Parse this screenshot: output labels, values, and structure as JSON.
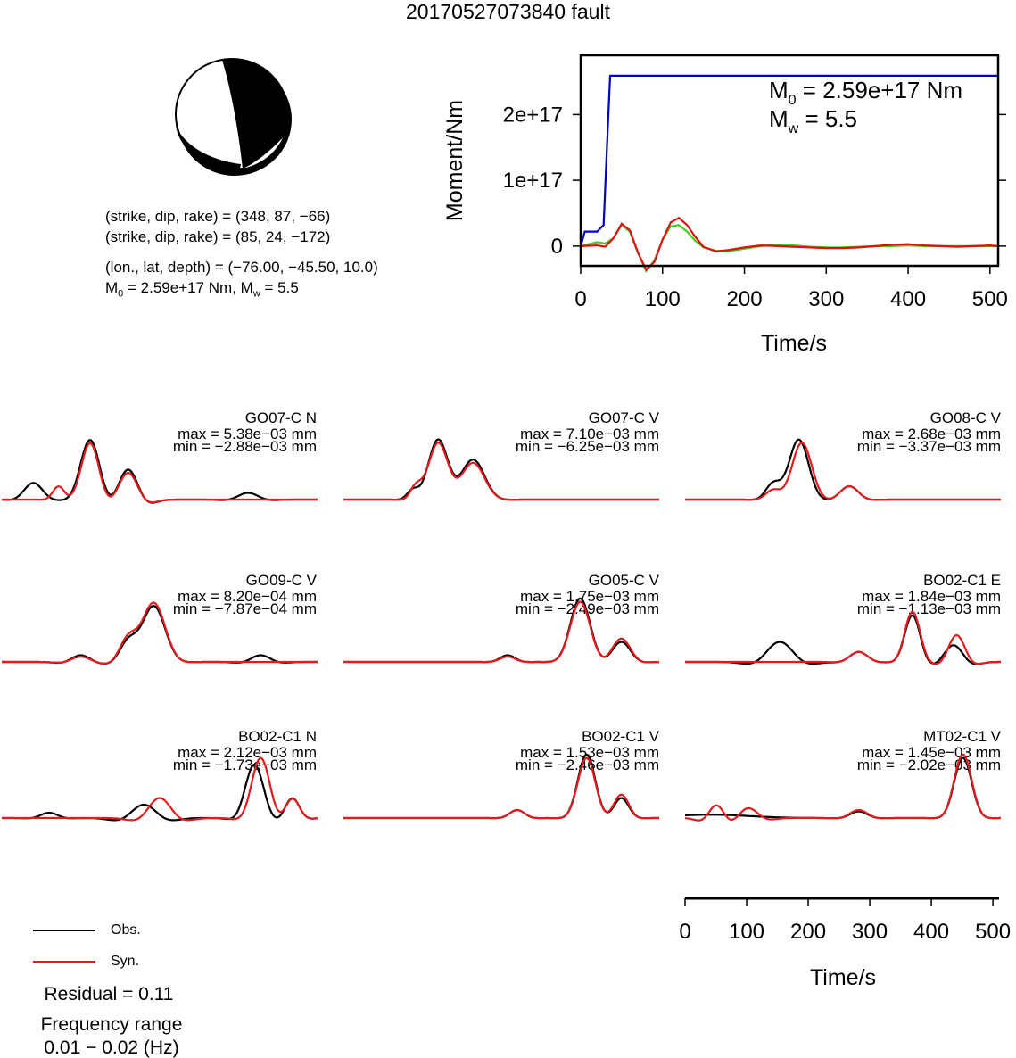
{
  "title": "20170527073840 fault",
  "beachball": {
    "color_black": "#000000",
    "color_white": "#ffffff"
  },
  "params": {
    "line1": "(strike, dip, rake) = (348, 87, −66)",
    "line2": "(strike, dip, rake) = (85, 24, −172)",
    "line3": "(lon., lat, depth) = (−76.00, −45.50, 10.0)",
    "line4": "M0 = 2.59e+17 Nm, Mw = 5.5"
  },
  "moment_chart": {
    "ylabel": "Moment/Nm",
    "xlabel": "Time/s",
    "annotation_m0": "M0 = 2.59e+17 Nm",
    "annotation_mw": "Mw = 5.5"
  },
  "stations": [
    {
      "name": "GO07-C N",
      "max": "max = 5.38e−03 mm",
      "min": "min = −2.88e−03 mm"
    },
    {
      "name": "GO07-C V",
      "max": "max = 7.10e−03 mm",
      "min": "min = −6.25e−03 mm"
    },
    {
      "name": "GO08-C V",
      "max": "max = 2.68e−03 mm",
      "min": "min = −3.37e−03 mm"
    },
    {
      "name": "GO09-C V",
      "max": "max = 8.20e−04 mm",
      "min": "min = −7.87e−04 mm"
    },
    {
      "name": "GO05-C V",
      "max": "max = 1.75e−03 mm",
      "min": "min = −2.49e−03 mm"
    },
    {
      "name": "BO02-C1 E",
      "max": "max = 1.84e−03 mm",
      "min": "min = −1.13e−03 mm"
    },
    {
      "name": "BO02-C1 N",
      "max": "max = 2.12e−03 mm",
      "min": "min = −1.73e−03 mm"
    },
    {
      "name": "BO02-C1 V",
      "max": "max = 1.53e−03 mm",
      "min": "min = −2.46e−03 mm"
    },
    {
      "name": "MT02-C1 V",
      "max": "max = 1.45e−03 mm",
      "min": "min = −2.02e−03 mm"
    }
  ],
  "legend": {
    "obs": "Obs.",
    "syn": "Syn.",
    "obs_color": "#000000",
    "syn_color": "#e41a1c"
  },
  "residual": "Residual = 0.11",
  "freq_label": "Frequency range",
  "freq_range": "0.01 − 0.02 (Hz)",
  "chart_data": [
    {
      "type": "line",
      "xlabel": "Time/s",
      "ylabel": "Moment/Nm",
      "xlim": [
        0,
        510
      ],
      "ylim": [
        -3e+16,
        2.9e+17
      ],
      "xticks": [
        0,
        100,
        200,
        300,
        400,
        500
      ],
      "yticks": [
        0,
        1e+17,
        2e+17
      ],
      "ytick_labels": [
        "0",
        "1e+17",
        "2e+17"
      ],
      "series": [
        {
          "color": "#0000cc",
          "x": [
            0,
            5,
            10,
            20,
            28,
            32,
            36,
            510
          ],
          "y": [
            0,
            2.2e+16,
            2.2e+16,
            2.2e+16,
            3.2e+16,
            1.5e+17,
            2.59e+17,
            2.59e+17
          ]
        },
        {
          "color": "#44cc22",
          "x": [
            0,
            20,
            30,
            40,
            50,
            60,
            70,
            80,
            90,
            100,
            110,
            120,
            130,
            140,
            150,
            165,
            180,
            200,
            220,
            240,
            260,
            280,
            300,
            320,
            340,
            360,
            380,
            400,
            420,
            440,
            460,
            480,
            500,
            510
          ],
          "y": [
            0,
            6000000000000000.0,
            4000000000000000.0,
            1.2e+16,
            3.2e+16,
            2.2e+16,
            -1e+16,
            -3.8e+16,
            -2.2e+16,
            1e+16,
            3e+16,
            3.2e+16,
            2.2e+16,
            8000000000000000.0,
            -2000000000000000.0,
            -7000000000000000.0,
            -8000000000000000.0,
            -4000000000000000.0,
            0,
            2000000000000000.0,
            1000000000000000.0,
            -1000000000000000.0,
            -2000000000000000.0,
            -2000000000000000.0,
            -1000000000000000.0,
            0,
            0,
            1000000000000000.0,
            0,
            0,
            0,
            0,
            0,
            0
          ]
        },
        {
          "color": "#dd1111",
          "x": [
            0,
            20,
            30,
            40,
            50,
            60,
            70,
            80,
            90,
            100,
            110,
            120,
            130,
            140,
            150,
            165,
            180,
            200,
            220,
            240,
            260,
            280,
            300,
            320,
            340,
            360,
            380,
            400,
            420,
            440,
            460,
            480,
            500,
            510
          ],
          "y": [
            0,
            1000000000000000.0,
            -1000000000000000.0,
            1.2e+16,
            3.4e+16,
            2.4e+16,
            -1e+16,
            -3.6e+16,
            -2.4e+16,
            1e+16,
            3.6e+16,
            4.3e+16,
            3.2e+16,
            1.4e+16,
            -1000000000000000.0,
            -8000000000000000.0,
            -6000000000000000.0,
            -2000000000000000.0,
            1000000000000000.0,
            0,
            -1000000000000000.0,
            -2000000000000000.0,
            -3000000000000000.0,
            -3000000000000000.0,
            -2000000000000000.0,
            0,
            2000000000000000.0,
            3000000000000000.0,
            1000000000000000.0,
            0,
            -1000000000000000.0,
            0,
            1000000000000000.0,
            0
          ]
        }
      ]
    },
    {
      "type": "line",
      "xlabel": "Time/s",
      "xlim": [
        0,
        510
      ],
      "xticks": [
        0,
        100,
        200,
        300,
        400,
        500
      ],
      "series": [
        {
          "name": "Obs.",
          "color": "#000000"
        },
        {
          "name": "Syn.",
          "color": "#e41a1c"
        }
      ]
    }
  ]
}
